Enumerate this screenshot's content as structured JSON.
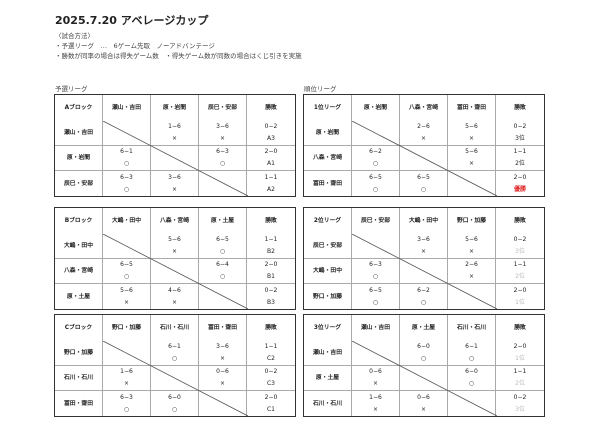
{
  "title": "2025.7.20 アベレージカップ",
  "notes": [
    "〈試合方法〉",
    "・予選リーグ　…　6ゲーム先取　ノーアドバンテージ",
    "・勝数が同率の場合は得失ゲーム数　・得失ゲーム数が同数の場合はくじ引きを実施"
  ],
  "sections": {
    "prelim": "予選リーグ",
    "ranking": "順位リーグ"
  },
  "colors": {
    "winner": "#e02020",
    "rank_gray": "#bbbbbb"
  },
  "tables": [
    {
      "label": "Aブロック",
      "teams": [
        "瀬山・吉田",
        "原・岩間",
        "辰巳・安部"
      ],
      "record_header": "勝敗",
      "rows": [
        [
          null,
          [
            "1−6",
            "×"
          ],
          [
            "3−6",
            "×"
          ],
          [
            "0−2",
            "A3"
          ]
        ],
        [
          [
            "6−1",
            "○"
          ],
          null,
          [
            "6−3",
            "○"
          ],
          [
            "2−0",
            "A1"
          ]
        ],
        [
          [
            "6−3",
            "○"
          ],
          [
            "3−6",
            "×"
          ],
          null,
          [
            "1−1",
            "A2"
          ]
        ]
      ],
      "rank_style": "normal"
    },
    {
      "label": "1位リーグ",
      "teams": [
        "原・岩間",
        "八森・宮崎",
        "冨田・齋田"
      ],
      "record_header": "勝敗",
      "rows": [
        [
          null,
          [
            "2−6",
            "×"
          ],
          [
            "5−6",
            "×"
          ],
          [
            "0−2",
            "3位"
          ]
        ],
        [
          [
            "6−2",
            "○"
          ],
          null,
          [
            "5−6",
            "×"
          ],
          [
            "1−1",
            "2位"
          ]
        ],
        [
          [
            "6−5",
            "○"
          ],
          [
            "6−5",
            "○"
          ],
          null,
          [
            "2−0",
            "優勝"
          ]
        ]
      ],
      "rank_style": "normal",
      "highlight": "優勝"
    },
    {
      "label": "Bブロック",
      "teams": [
        "大嶋・田中",
        "八森・宮崎",
        "原・土屋"
      ],
      "record_header": "勝敗",
      "rows": [
        [
          null,
          [
            "5−6",
            "×"
          ],
          [
            "6−5",
            "○"
          ],
          [
            "1−1",
            "B2"
          ]
        ],
        [
          [
            "6−5",
            "○"
          ],
          null,
          [
            "6−4",
            "○"
          ],
          [
            "2−0",
            "B1"
          ]
        ],
        [
          [
            "5−6",
            "×"
          ],
          [
            "4−6",
            "×"
          ],
          null,
          [
            "0−2",
            "B3"
          ]
        ]
      ],
      "rank_style": "normal"
    },
    {
      "label": "2位リーグ",
      "teams": [
        "辰巳・安部",
        "大嶋・田中",
        "野口・加藤"
      ],
      "record_header": "勝敗",
      "rows": [
        [
          null,
          [
            "3−6",
            "×"
          ],
          [
            "5−6",
            "×"
          ],
          [
            "0−2",
            "3位"
          ]
        ],
        [
          [
            "6−3",
            "○"
          ],
          null,
          [
            "2−6",
            "×"
          ],
          [
            "1−1",
            "2位"
          ]
        ],
        [
          [
            "6−5",
            "○"
          ],
          [
            "6−2",
            "○"
          ],
          null,
          [
            "2−0",
            "1位"
          ]
        ]
      ],
      "rank_style": "gray"
    },
    {
      "label": "Cブロック",
      "teams": [
        "野口・加藤",
        "石川・石川",
        "冨田・齋田"
      ],
      "record_header": "勝敗",
      "rows": [
        [
          null,
          [
            "6−1",
            "○"
          ],
          [
            "3−6",
            "×"
          ],
          [
            "1−1",
            "C2"
          ]
        ],
        [
          [
            "1−6",
            "×"
          ],
          null,
          [
            "0−6",
            "×"
          ],
          [
            "0−2",
            "C3"
          ]
        ],
        [
          [
            "6−3",
            "○"
          ],
          [
            "6−0",
            "○"
          ],
          null,
          [
            "2−0",
            "C1"
          ]
        ]
      ],
      "rank_style": "normal"
    },
    {
      "label": "3位リーグ",
      "teams": [
        "瀬山・吉田",
        "原・土屋",
        "石川・石川"
      ],
      "record_header": "勝敗",
      "rows": [
        [
          null,
          [
            "6−0",
            "○"
          ],
          [
            "6−1",
            "○"
          ],
          [
            "2−0",
            "1位"
          ]
        ],
        [
          [
            "0−6",
            "×"
          ],
          null,
          [
            "6−0",
            "○"
          ],
          [
            "1−1",
            "2位"
          ]
        ],
        [
          [
            "1−6",
            "×"
          ],
          [
            "0−6",
            "×"
          ],
          null,
          [
            "0−2",
            "3位"
          ]
        ]
      ],
      "rank_style": "gray"
    }
  ]
}
